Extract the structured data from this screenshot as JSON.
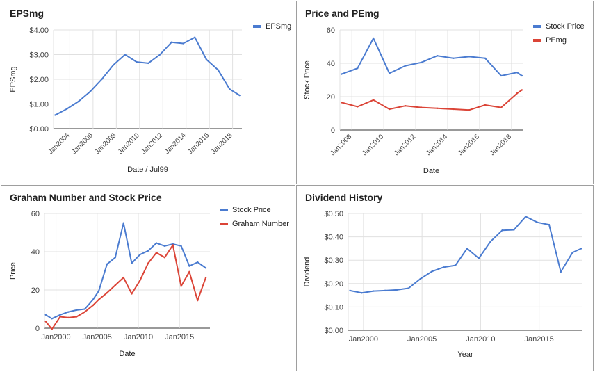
{
  "chart_data": [
    {
      "type": "line",
      "title": "EPSmg",
      "xlabel": "Date / Jul99",
      "ylabel": "EPSmg",
      "ylim": [
        0,
        4
      ],
      "xlim": [
        2002.6,
        2018.8
      ],
      "y_ticks": [
        0,
        1,
        2,
        3,
        4
      ],
      "y_tick_labels": [
        "$0.00",
        "$1.00",
        "$2.00",
        "$3.00",
        "$4.00"
      ],
      "x_ticks": [
        2004,
        2006,
        2008,
        2010,
        2012,
        2014,
        2016,
        2018
      ],
      "x_tick_labels": [
        "Jan2004",
        "Jan2006",
        "Jan2008",
        "Jan2010",
        "Jan2012",
        "Jan2014",
        "Jan2016",
        "Jan2018"
      ],
      "x_label_rotate": true,
      "grid": true,
      "legend_position": "top-right",
      "series": [
        {
          "name": "EPSmg",
          "color": "#4a7bd0",
          "x": [
            2002.75,
            2003.75,
            2004.75,
            2005.75,
            2006.75,
            2007.75,
            2008.75,
            2009.75,
            2010.75,
            2011.75,
            2012.75,
            2013.75,
            2014.75,
            2015.75,
            2016.75,
            2017.75,
            2018.6
          ],
          "y": [
            0.55,
            0.8,
            1.1,
            1.5,
            2.0,
            2.58,
            3.0,
            2.7,
            2.65,
            3.0,
            3.5,
            3.45,
            3.7,
            2.8,
            2.38,
            1.6,
            1.35
          ]
        }
      ]
    },
    {
      "type": "line",
      "title": "Price and PEmg",
      "xlabel": "Date",
      "ylabel": "Stock Price",
      "ylim": [
        0,
        60
      ],
      "xlim": [
        2007.25,
        2018.7
      ],
      "y_ticks": [
        0,
        20,
        40,
        60
      ],
      "y_tick_labels": [
        "0",
        "20",
        "40",
        "60"
      ],
      "x_ticks": [
        2008,
        2010,
        2012,
        2014,
        2016,
        2018
      ],
      "x_tick_labels": [
        "Jan2008",
        "Jan2010",
        "Jan2012",
        "Jan2014",
        "Jan2016",
        "Jan2018"
      ],
      "x_label_rotate": true,
      "grid": true,
      "legend_position": "top-right",
      "series": [
        {
          "name": "Stock Price",
          "color": "#4a7bd0",
          "x": [
            2007.35,
            2008.35,
            2009.35,
            2010.35,
            2011.35,
            2012.35,
            2013.35,
            2014.35,
            2015.35,
            2016.35,
            2017.35,
            2018.35,
            2018.65
          ],
          "y": [
            33.5,
            37,
            55,
            34,
            38.5,
            40.5,
            44.5,
            43,
            44,
            43,
            32.5,
            34.5,
            32.5
          ]
        },
        {
          "name": "PEmg",
          "color": "#db4437",
          "x": [
            2007.35,
            2008.35,
            2009.35,
            2010.35,
            2011.35,
            2012.35,
            2013.35,
            2014.35,
            2015.35,
            2016.35,
            2017.35,
            2018.35,
            2018.65
          ],
          "y": [
            16.5,
            14,
            18,
            12.5,
            14.5,
            13.5,
            13,
            12.5,
            12,
            15,
            13.5,
            22,
            24
          ]
        }
      ]
    },
    {
      "type": "line",
      "title": "Graham Number and Stock Price",
      "xlabel": "Date",
      "ylabel": "Price",
      "ylim": [
        0,
        60
      ],
      "xlim": [
        1998.6,
        2018.7
      ],
      "y_ticks": [
        0,
        20,
        40,
        60
      ],
      "y_tick_labels": [
        "0",
        "20",
        "40",
        "60"
      ],
      "x_ticks": [
        2000,
        2005,
        2010,
        2015
      ],
      "x_tick_labels": [
        "Jan2000",
        "Jan2005",
        "Jan2010",
        "Jan2015"
      ],
      "x_label_rotate": false,
      "grid": true,
      "legend_position": "top-right",
      "series": [
        {
          "name": "Stock Price",
          "color": "#4a7bd0",
          "x": [
            1998.75,
            1999.5,
            2000.5,
            2001.5,
            2002.5,
            2003.5,
            2004.5,
            2005.2,
            2006.2,
            2007.2,
            2008.2,
            2009.2,
            2010.2,
            2011.2,
            2012.2,
            2013.2,
            2014.2,
            2015.2,
            2016.2,
            2017.2,
            2018.2
          ],
          "y": [
            7,
            5,
            7,
            8.5,
            9.5,
            10,
            15,
            19.5,
            33.5,
            37,
            55,
            34,
            38.5,
            40.5,
            44.5,
            43,
            44,
            43,
            32.5,
            34.5,
            31.5
          ]
        },
        {
          "name": "Graham Number",
          "color": "#db4437",
          "x": [
            1998.75,
            1999.5,
            2000.5,
            2001.5,
            2002.5,
            2003.5,
            2004.5,
            2005.2,
            2006.2,
            2007.2,
            2008.2,
            2009.2,
            2010.2,
            2011.2,
            2012.2,
            2013.2,
            2014.2,
            2015.2,
            2016.2,
            2017.2,
            2018.2
          ],
          "y": [
            3.5,
            -0.5,
            6,
            5.5,
            6,
            8.5,
            12,
            15,
            18.5,
            22.5,
            26.5,
            18,
            25,
            34,
            39.5,
            37,
            43.5,
            22,
            29.5,
            14.5,
            26.5
          ]
        }
      ]
    },
    {
      "type": "line",
      "title": "Dividend History",
      "xlabel": "Year",
      "ylabel": "Dividend",
      "ylim": [
        0,
        0.5
      ],
      "xlim": [
        1998.7,
        2018.7
      ],
      "y_ticks": [
        0,
        0.1,
        0.2,
        0.3,
        0.4,
        0.5
      ],
      "y_tick_labels": [
        "$0.00",
        "$0.10",
        "$0.20",
        "$0.30",
        "$0.40",
        "$0.50"
      ],
      "x_ticks": [
        2000,
        2005,
        2010,
        2015
      ],
      "x_tick_labels": [
        "Jan2000",
        "Jan2005",
        "Jan2010",
        "Jan2015"
      ],
      "x_label_rotate": false,
      "grid": true,
      "legend_position": "none",
      "series": [
        {
          "name": "",
          "color": "#4a7bd0",
          "x": [
            1998.85,
            1999.85,
            2000.85,
            2001.85,
            2002.85,
            2003.85,
            2004.85,
            2005.85,
            2006.85,
            2007.85,
            2008.85,
            2009.85,
            2010.85,
            2011.85,
            2012.85,
            2013.85,
            2014.85,
            2015.85,
            2016.85,
            2017.85,
            2018.6
          ],
          "y": [
            0.17,
            0.16,
            0.168,
            0.17,
            0.173,
            0.18,
            0.22,
            0.252,
            0.27,
            0.278,
            0.35,
            0.308,
            0.38,
            0.428,
            0.43,
            0.487,
            0.462,
            0.452,
            0.25,
            0.333,
            0.35
          ]
        }
      ]
    }
  ]
}
